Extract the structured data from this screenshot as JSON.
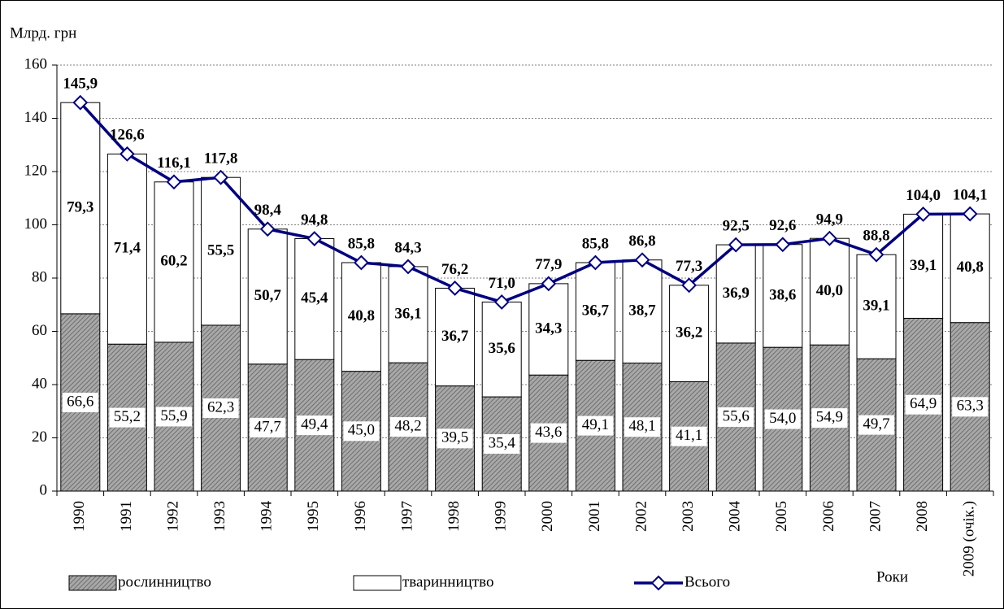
{
  "chart_data": {
    "type": "bar",
    "stacked": true,
    "ylabel": "Млрд. грн",
    "xlabel": "Роки",
    "categories": [
      "1990",
      "1991",
      "1992",
      "1993",
      "1994",
      "1995",
      "1996",
      "1997",
      "1998",
      "1999",
      "2000",
      "2001",
      "2002",
      "2003",
      "2004",
      "2005",
      "2006",
      "2007",
      "2008",
      "2009 (очік.)"
    ],
    "series": [
      {
        "name": "рослинництво",
        "color": "#8c8c8c",
        "pattern": "hatch",
        "values": [
          66.6,
          55.2,
          55.9,
          62.3,
          47.7,
          49.4,
          45.0,
          48.2,
          39.5,
          35.4,
          43.6,
          49.1,
          48.1,
          41.1,
          55.6,
          54.0,
          54.9,
          49.7,
          64.9,
          63.3
        ],
        "value_labels": [
          "66,6",
          "55,2",
          "55,9",
          "62,3",
          "47,7",
          "49,4",
          "45,0",
          "48,2",
          "39,5",
          "35,4",
          "43,6",
          "49,1",
          "48,1",
          "41,1",
          "55,6",
          "54,0",
          "54,9",
          "49,7",
          "64,9",
          "63,3"
        ]
      },
      {
        "name": "тваринництво",
        "color": "#ffffff",
        "values": [
          79.3,
          71.4,
          60.2,
          55.5,
          50.7,
          45.4,
          40.8,
          36.1,
          36.7,
          35.6,
          34.3,
          36.7,
          38.7,
          36.2,
          36.9,
          38.6,
          40.0,
          39.1,
          39.1,
          40.8
        ],
        "value_labels": [
          "79,3",
          "71,4",
          "60,2",
          "55,5",
          "50,7",
          "45,4",
          "40,8",
          "36,1",
          "36,7",
          "35,6",
          "34,3",
          "36,7",
          "38,7",
          "36,2",
          "36,9",
          "38,6",
          "40,0",
          "39,1",
          "39,1",
          "40,8"
        ]
      },
      {
        "name": "Всього",
        "color": "#000080",
        "type": "line",
        "values": [
          145.9,
          126.6,
          116.1,
          117.8,
          98.4,
          94.8,
          85.8,
          84.3,
          76.2,
          71.0,
          77.9,
          85.8,
          86.8,
          77.3,
          92.5,
          92.6,
          94.9,
          88.8,
          104.0,
          104.1
        ],
        "value_labels": [
          "145,9",
          "126,6",
          "116,1",
          "117,8",
          "98,4",
          "94,8",
          "85,8",
          "84,3",
          "76,2",
          "71,0",
          "77,9",
          "85,8",
          "86,8",
          "77,3",
          "92,5",
          "92,6",
          "94,9",
          "88,8",
          "104,0",
          "104,1"
        ]
      }
    ],
    "ylim": [
      0,
      160
    ],
    "yticks": [
      0,
      20,
      40,
      60,
      80,
      100,
      120,
      140,
      160
    ],
    "grid": true
  }
}
